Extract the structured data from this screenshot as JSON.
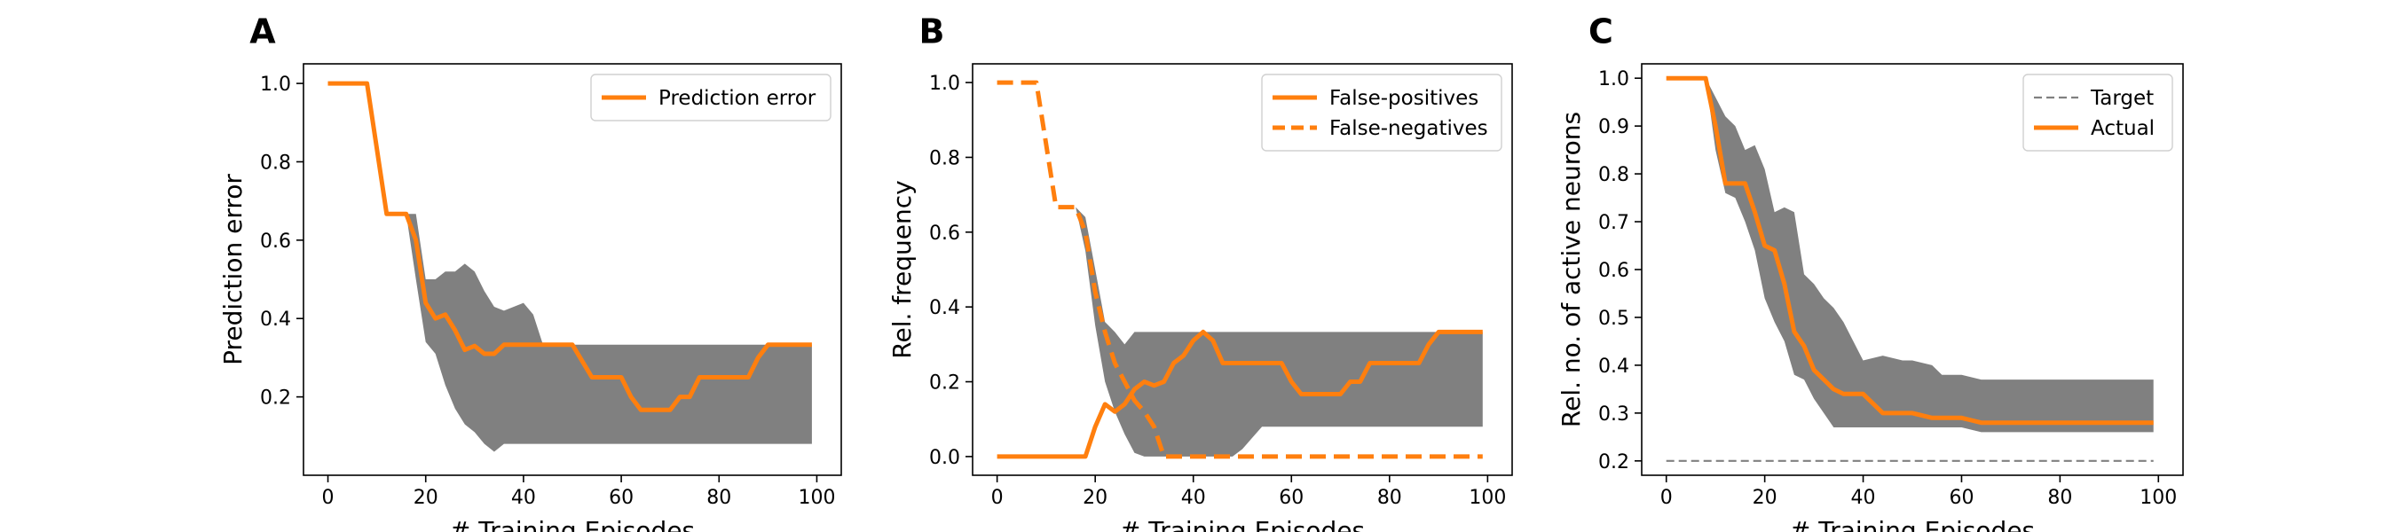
{
  "figure": {
    "background": "#ffffff"
  },
  "colors": {
    "orange": "#ff7f0e",
    "band": "#808080",
    "target": "#808080",
    "axis": "#000000"
  },
  "chart_data": [
    {
      "panel": "A",
      "type": "line",
      "xlabel": "# Training Episodes",
      "ylabel": "Prediction error",
      "xlim": [
        -5,
        105
      ],
      "ylim": [
        0.0,
        1.05
      ],
      "xticks": [
        0,
        20,
        40,
        60,
        80,
        100
      ],
      "yticks": [
        0.2,
        0.4,
        0.6,
        0.8,
        1.0
      ],
      "ytick_labels": [
        "0.2",
        "0.4",
        "0.6",
        "0.8",
        "1.0"
      ],
      "grid": false,
      "legend_position": "top-right",
      "series": [
        {
          "name": "Prediction error",
          "style": "solid",
          "x": [
            0,
            8,
            12,
            16,
            18,
            20,
            22,
            24,
            26,
            28,
            30,
            32,
            34,
            36,
            40,
            44,
            50,
            54,
            60,
            62,
            64,
            70,
            72,
            74,
            76,
            80,
            86,
            88,
            90,
            94,
            99
          ],
          "y": [
            1.0,
            1.0,
            0.667,
            0.667,
            0.6,
            0.44,
            0.4,
            0.41,
            0.37,
            0.32,
            0.33,
            0.31,
            0.31,
            0.333,
            0.333,
            0.333,
            0.333,
            0.25,
            0.25,
            0.2,
            0.167,
            0.167,
            0.2,
            0.2,
            0.25,
            0.25,
            0.25,
            0.3,
            0.333,
            0.333,
            0.333
          ]
        }
      ],
      "band": {
        "x": [
          16,
          18,
          20,
          22,
          24,
          26,
          28,
          30,
          32,
          34,
          36,
          40,
          42,
          44,
          50,
          60,
          70,
          80,
          90,
          99
        ],
        "lower": [
          0.667,
          0.5,
          0.34,
          0.31,
          0.23,
          0.17,
          0.13,
          0.11,
          0.08,
          0.06,
          0.08,
          0.08,
          0.08,
          0.08,
          0.08,
          0.08,
          0.08,
          0.08,
          0.08,
          0.08
        ],
        "upper": [
          0.667,
          0.667,
          0.5,
          0.5,
          0.52,
          0.52,
          0.54,
          0.52,
          0.47,
          0.43,
          0.42,
          0.44,
          0.41,
          0.333,
          0.333,
          0.333,
          0.333,
          0.333,
          0.333,
          0.333
        ]
      }
    },
    {
      "panel": "B",
      "type": "line",
      "xlabel": "# Training Episodes",
      "ylabel": "Rel. frequency",
      "xlim": [
        -5,
        105
      ],
      "ylim": [
        -0.05,
        1.05
      ],
      "xticks": [
        0,
        20,
        40,
        60,
        80,
        100
      ],
      "yticks": [
        0.0,
        0.2,
        0.4,
        0.6,
        0.8,
        1.0
      ],
      "ytick_labels": [
        "0.0",
        "0.2",
        "0.4",
        "0.6",
        "0.8",
        "1.0"
      ],
      "grid": false,
      "legend_position": "top-right",
      "series": [
        {
          "name": "False-positives",
          "style": "solid",
          "x": [
            0,
            4,
            8,
            12,
            16,
            18,
            20,
            22,
            24,
            26,
            28,
            30,
            32,
            34,
            36,
            38,
            40,
            42,
            44,
            46,
            50,
            54,
            58,
            60,
            62,
            64,
            70,
            72,
            74,
            76,
            80,
            86,
            88,
            90,
            94,
            99
          ],
          "y": [
            0.0,
            0.0,
            0.0,
            0.0,
            0.0,
            0.0,
            0.08,
            0.14,
            0.12,
            0.14,
            0.18,
            0.2,
            0.19,
            0.2,
            0.25,
            0.27,
            0.31,
            0.333,
            0.31,
            0.25,
            0.25,
            0.25,
            0.25,
            0.2,
            0.167,
            0.167,
            0.167,
            0.2,
            0.2,
            0.25,
            0.25,
            0.25,
            0.3,
            0.333,
            0.333,
            0.333
          ]
        },
        {
          "name": "False-negatives",
          "style": "dashed",
          "x": [
            0,
            4,
            8,
            12,
            16,
            18,
            20,
            22,
            24,
            26,
            28,
            30,
            32,
            34,
            36,
            40,
            50,
            60,
            70,
            80,
            90,
            99
          ],
          "y": [
            1.0,
            1.0,
            1.0,
            0.667,
            0.667,
            0.6,
            0.44,
            0.333,
            0.25,
            0.2,
            0.15,
            0.12,
            0.08,
            0.0,
            0.0,
            0.0,
            0.0,
            0.0,
            0.0,
            0.0,
            0.0,
            0.0
          ]
        }
      ],
      "band": {
        "x": [
          16,
          18,
          20,
          22,
          24,
          26,
          28,
          30,
          32,
          34,
          36,
          40,
          44,
          48,
          50,
          52,
          54,
          56,
          60,
          70,
          80,
          90,
          99
        ],
        "lower": [
          0.667,
          0.55,
          0.35,
          0.2,
          0.12,
          0.06,
          0.01,
          0.0,
          0.0,
          0.0,
          0.0,
          0.0,
          0.0,
          0.0,
          0.02,
          0.05,
          0.08,
          0.08,
          0.08,
          0.08,
          0.08,
          0.08,
          0.08
        ],
        "upper": [
          0.667,
          0.64,
          0.5,
          0.36,
          0.333,
          0.3,
          0.333,
          0.333,
          0.333,
          0.333,
          0.333,
          0.333,
          0.333,
          0.333,
          0.333,
          0.333,
          0.333,
          0.333,
          0.333,
          0.333,
          0.333,
          0.333,
          0.333
        ]
      }
    },
    {
      "panel": "C",
      "type": "line",
      "xlabel": "# Training Episodes",
      "ylabel": "Rel. no. of active neurons",
      "xlim": [
        -5,
        105
      ],
      "ylim": [
        0.17,
        1.03
      ],
      "xticks": [
        0,
        20,
        40,
        60,
        80,
        100
      ],
      "yticks": [
        0.2,
        0.3,
        0.4,
        0.5,
        0.6,
        0.7,
        0.8,
        0.9,
        1.0
      ],
      "ytick_labels": [
        "0.2",
        "0.3",
        "0.4",
        "0.5",
        "0.6",
        "0.7",
        "0.8",
        "0.9",
        "1.0"
      ],
      "grid": false,
      "legend_position": "top-right",
      "series": [
        {
          "name": "Target",
          "style": "dashed-thin",
          "x": [
            0,
            99
          ],
          "y": [
            0.2,
            0.2
          ]
        },
        {
          "name": "Actual",
          "style": "solid",
          "x": [
            0,
            4,
            8,
            10,
            12,
            14,
            16,
            18,
            20,
            22,
            24,
            26,
            28,
            30,
            32,
            34,
            36,
            38,
            40,
            42,
            44,
            46,
            50,
            54,
            56,
            60,
            62,
            64,
            66,
            70,
            80,
            90,
            99
          ],
          "y": [
            1.0,
            1.0,
            1.0,
            0.9,
            0.78,
            0.78,
            0.78,
            0.72,
            0.65,
            0.64,
            0.57,
            0.47,
            0.44,
            0.39,
            0.37,
            0.35,
            0.34,
            0.34,
            0.34,
            0.32,
            0.3,
            0.3,
            0.3,
            0.29,
            0.29,
            0.29,
            0.285,
            0.28,
            0.28,
            0.28,
            0.28,
            0.28,
            0.28
          ]
        }
      ],
      "band": {
        "x": [
          8,
          10,
          12,
          14,
          16,
          18,
          20,
          22,
          24,
          26,
          28,
          30,
          32,
          34,
          36,
          40,
          44,
          48,
          50,
          54,
          56,
          60,
          64,
          66,
          70,
          80,
          90,
          99
        ],
        "lower": [
          1.0,
          0.85,
          0.76,
          0.75,
          0.7,
          0.64,
          0.54,
          0.49,
          0.45,
          0.38,
          0.37,
          0.33,
          0.3,
          0.27,
          0.27,
          0.27,
          0.27,
          0.27,
          0.27,
          0.27,
          0.27,
          0.27,
          0.26,
          0.26,
          0.26,
          0.26,
          0.26,
          0.26
        ],
        "upper": [
          1.0,
          0.96,
          0.92,
          0.9,
          0.85,
          0.86,
          0.81,
          0.72,
          0.73,
          0.72,
          0.59,
          0.57,
          0.54,
          0.52,
          0.49,
          0.41,
          0.42,
          0.41,
          0.41,
          0.4,
          0.38,
          0.38,
          0.37,
          0.37,
          0.37,
          0.37,
          0.37,
          0.37
        ]
      }
    }
  ]
}
